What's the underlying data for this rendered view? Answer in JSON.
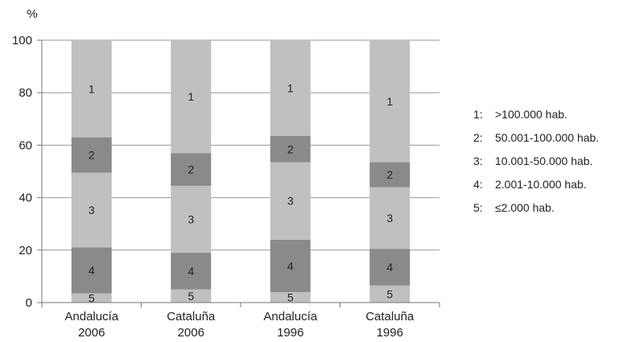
{
  "chart_data": {
    "type": "bar",
    "stacked": true,
    "ylabel": "%",
    "ylim": [
      0,
      100
    ],
    "yticks": [
      0,
      20,
      40,
      60,
      80,
      100
    ],
    "grid": true,
    "legend_position": "right",
    "categories": [
      [
        "Andalucía",
        "2006"
      ],
      [
        "Cataluña",
        "2006"
      ],
      [
        "Andalucía",
        "1996"
      ],
      [
        "Cataluña",
        "1996"
      ]
    ],
    "series": [
      {
        "key": "5",
        "label": "5",
        "values": [
          3.5,
          5.0,
          4.0,
          6.5
        ],
        "color": "#c0c0c0"
      },
      {
        "key": "4",
        "label": "4",
        "values": [
          17.5,
          14.0,
          20.0,
          14.0
        ],
        "color": "#8a8a8a"
      },
      {
        "key": "3",
        "label": "3",
        "values": [
          28.5,
          25.5,
          29.5,
          23.5
        ],
        "color": "#c0c0c0"
      },
      {
        "key": "2",
        "label": "2",
        "values": [
          13.5,
          12.5,
          10.0,
          9.5
        ],
        "color": "#8a8a8a"
      },
      {
        "key": "1",
        "label": "1",
        "values": [
          37.0,
          43.0,
          36.5,
          46.5
        ],
        "color": "#c0c0c0"
      }
    ],
    "legend": [
      {
        "key": "1:",
        "text": ">100.000 hab."
      },
      {
        "key": "2:",
        "text": "50.001-100.000 hab."
      },
      {
        "key": "3:",
        "text": "10.001-50.000 hab."
      },
      {
        "key": "4:",
        "text": "2.001-10.000 hab."
      },
      {
        "key": "5:",
        "text": "≤2.000 hab."
      }
    ]
  }
}
